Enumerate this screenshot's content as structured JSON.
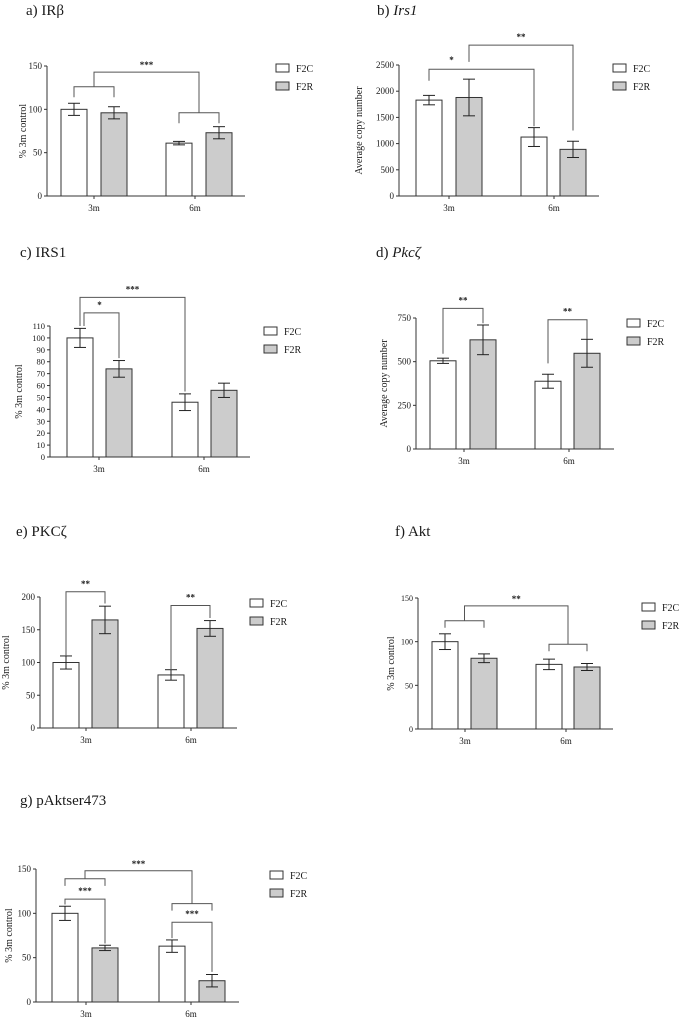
{
  "figure": {
    "legend": {
      "items": [
        {
          "label": "F2C",
          "color": "#ffffff"
        },
        {
          "label": "F2R",
          "color": "#cccccc"
        }
      ]
    },
    "colors": {
      "f2c": "#ffffff",
      "f2r": "#cccccc",
      "stroke": "#333333",
      "bracket": "#555555"
    }
  },
  "chart_data": [
    {
      "id": "a",
      "type": "bar",
      "title_prefix": "a)",
      "title": "IRβ",
      "italic": false,
      "ylabel": "% 3m control",
      "ylim": [
        0,
        150
      ],
      "yticks": [
        0,
        50,
        100,
        150
      ],
      "categories": [
        "3m",
        "6m"
      ],
      "series": [
        {
          "name": "F2C",
          "values": [
            100,
            61
          ],
          "errors": [
            7,
            2
          ]
        },
        {
          "name": "F2R",
          "values": [
            96,
            73
          ],
          "errors": [
            7,
            7
          ]
        }
      ],
      "annotations": [
        {
          "type": "group-bracket",
          "label": "***",
          "between": [
            "3m",
            "6m"
          ]
        }
      ],
      "legend_position": "right"
    },
    {
      "id": "b",
      "type": "bar",
      "title_prefix": "b)",
      "title": "Irs1",
      "italic": true,
      "ylabel": "Average copy number",
      "ylim": [
        0,
        2500
      ],
      "yticks": [
        0,
        500,
        1000,
        1500,
        2000,
        2500
      ],
      "categories": [
        "3m",
        "6m"
      ],
      "series": [
        {
          "name": "F2C",
          "values": [
            1830,
            1125
          ],
          "errors": [
            90,
            180
          ]
        },
        {
          "name": "F2R",
          "values": [
            1880,
            890
          ],
          "errors": [
            350,
            155
          ]
        }
      ],
      "annotations": [
        {
          "type": "bracket",
          "label": "*",
          "from": "3m F2C",
          "to": "6m F2C"
        },
        {
          "type": "bracket",
          "label": "**",
          "from": "3m F2R",
          "to": "6m F2R"
        }
      ],
      "legend_position": "right"
    },
    {
      "id": "c",
      "type": "bar",
      "title_prefix": "c)",
      "title": "IRS1",
      "italic": false,
      "ylabel": "% 3m control",
      "ylim": [
        0,
        110
      ],
      "yticks": [
        0,
        10,
        20,
        30,
        40,
        50,
        60,
        70,
        80,
        90,
        100,
        110
      ],
      "categories": [
        "3m",
        "6m"
      ],
      "series": [
        {
          "name": "F2C",
          "values": [
            100,
            46
          ],
          "errors": [
            8,
            7
          ]
        },
        {
          "name": "F2R",
          "values": [
            74,
            56
          ],
          "errors": [
            7,
            6
          ]
        }
      ],
      "annotations": [
        {
          "type": "bracket",
          "label": "*",
          "from": "3m F2C",
          "to": "3m F2R"
        },
        {
          "type": "bracket",
          "label": "***",
          "from": "3m F2C",
          "to": "6m F2C"
        }
      ],
      "legend_position": "right"
    },
    {
      "id": "d",
      "type": "bar",
      "title_prefix": "d)",
      "title": "Pkcζ",
      "italic": true,
      "ylabel": "Average copy number",
      "ylim": [
        0,
        750
      ],
      "yticks": [
        0,
        250,
        500,
        750
      ],
      "categories": [
        "3m",
        "6m"
      ],
      "series": [
        {
          "name": "F2C",
          "values": [
            505,
            388
          ],
          "errors": [
            15,
            40
          ]
        },
        {
          "name": "F2R",
          "values": [
            625,
            548
          ],
          "errors": [
            85,
            80
          ]
        }
      ],
      "annotations": [
        {
          "type": "bracket",
          "label": "**",
          "from": "3m F2C",
          "to": "3m F2R"
        },
        {
          "type": "bracket",
          "label": "**",
          "from": "6m F2C",
          "to": "6m F2R"
        }
      ],
      "legend_position": "right"
    },
    {
      "id": "e",
      "type": "bar",
      "title_prefix": "e)",
      "title": "PKCζ",
      "italic": false,
      "ylabel": "% 3m control",
      "ylim": [
        0,
        200
      ],
      "yticks": [
        0,
        50,
        100,
        150,
        200
      ],
      "categories": [
        "3m",
        "6m"
      ],
      "series": [
        {
          "name": "F2C",
          "values": [
            100,
            81
          ],
          "errors": [
            10,
            8
          ]
        },
        {
          "name": "F2R",
          "values": [
            165,
            152
          ],
          "errors": [
            21,
            12
          ]
        }
      ],
      "annotations": [
        {
          "type": "bracket",
          "label": "**",
          "from": "3m F2C",
          "to": "3m F2R"
        },
        {
          "type": "bracket",
          "label": "**",
          "from": "6m F2C",
          "to": "6m F2R"
        }
      ],
      "legend_position": "right"
    },
    {
      "id": "f",
      "type": "bar",
      "title_prefix": "f)",
      "title": "Akt",
      "italic": false,
      "ylabel": "% 3m control",
      "ylim": [
        0,
        150
      ],
      "yticks": [
        0,
        50,
        100,
        150
      ],
      "categories": [
        "3m",
        "6m"
      ],
      "series": [
        {
          "name": "F2C",
          "values": [
            100,
            74
          ],
          "errors": [
            9,
            6
          ]
        },
        {
          "name": "F2R",
          "values": [
            81,
            71
          ],
          "errors": [
            5,
            4
          ]
        }
      ],
      "annotations": [
        {
          "type": "group-bracket",
          "label": "**",
          "between": [
            "3m",
            "6m"
          ]
        }
      ],
      "legend_position": "right"
    },
    {
      "id": "g",
      "type": "bar",
      "title_prefix": "g)",
      "title": "pAktser473",
      "italic": false,
      "ylabel": "% 3m control",
      "ylim": [
        0,
        150
      ],
      "yticks": [
        0,
        50,
        100,
        150
      ],
      "categories": [
        "3m",
        "6m"
      ],
      "series": [
        {
          "name": "F2C",
          "values": [
            100,
            63
          ],
          "errors": [
            8,
            7
          ]
        },
        {
          "name": "F2R",
          "values": [
            61,
            24
          ],
          "errors": [
            3,
            7
          ]
        }
      ],
      "annotations": [
        {
          "type": "group-bracket",
          "label": "***",
          "between": [
            "3m",
            "6m"
          ]
        },
        {
          "type": "bracket",
          "label": "***",
          "from": "3m F2C",
          "to": "3m F2R"
        },
        {
          "type": "bracket",
          "label": "***",
          "from": "6m F2C",
          "to": "6m F2R"
        }
      ],
      "legend_position": "right"
    }
  ]
}
